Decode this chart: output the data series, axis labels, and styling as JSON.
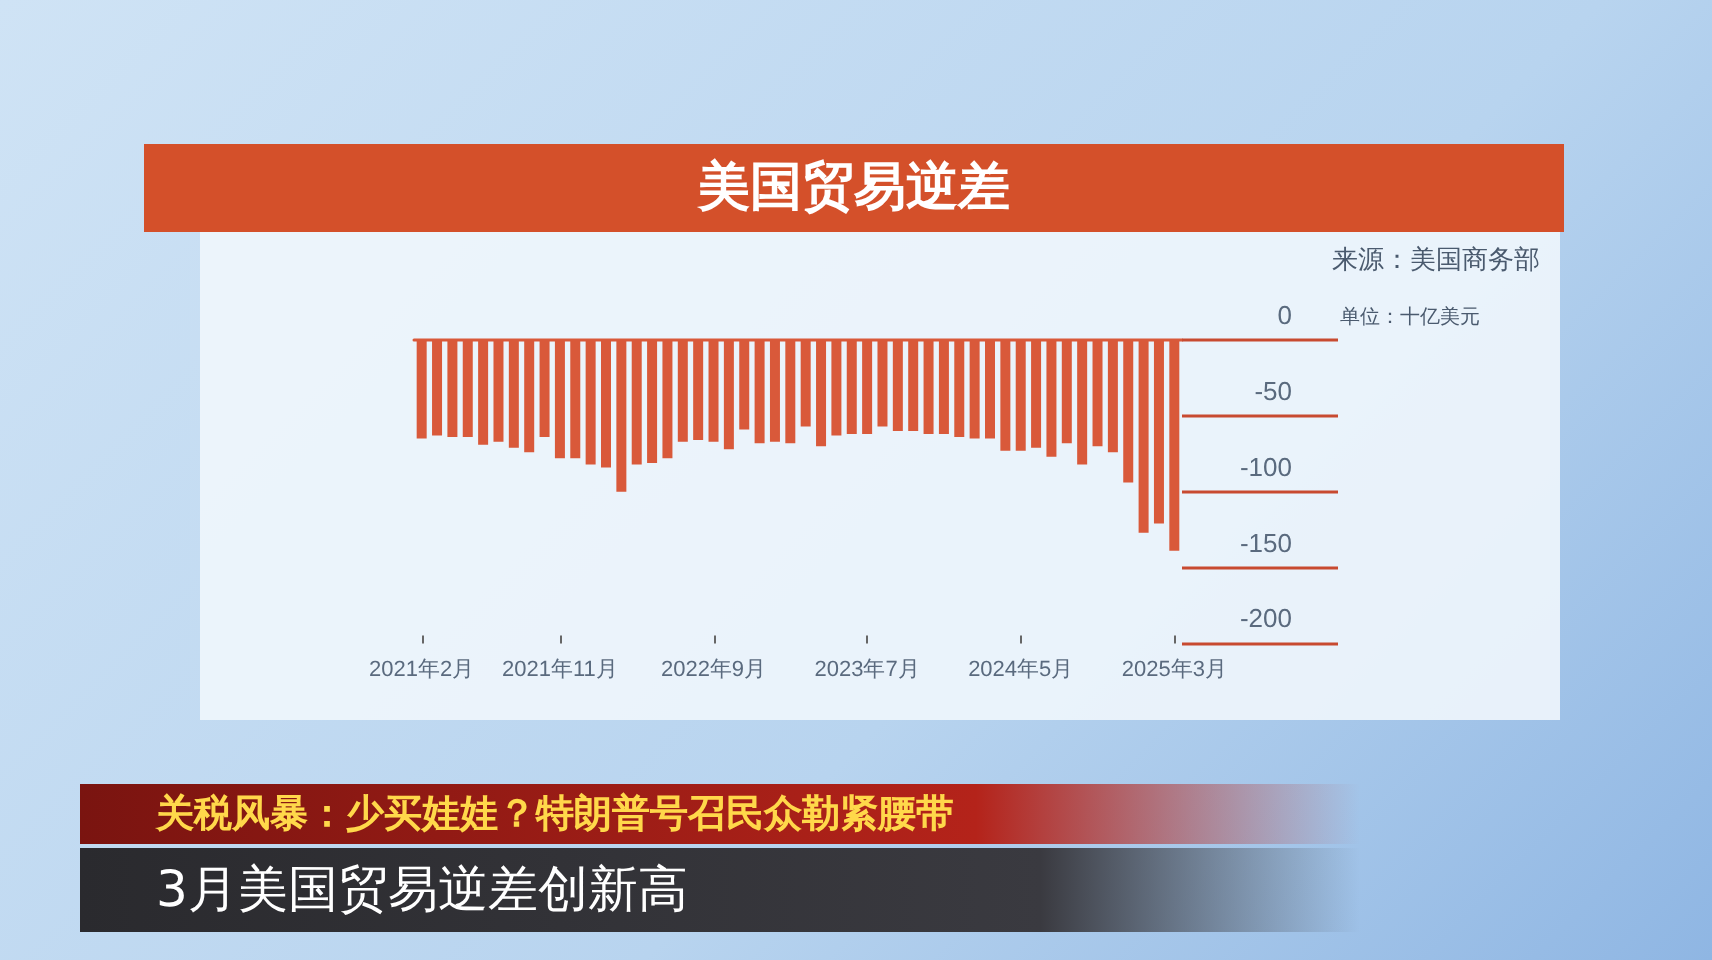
{
  "chart_data": {
    "type": "bar",
    "title": "美国贸易逆差",
    "annotations": [
      "来源：美国商务部",
      "单位：十亿美元",
      "关税风暴：少买娃娃？特朗普号召民众勒紧腰带",
      "3月美国贸易逆差创新高"
    ],
    "categories": [
      "2021年2月",
      null,
      null,
      null,
      null,
      null,
      null,
      null,
      null,
      "2021年11月",
      null,
      null,
      null,
      null,
      null,
      null,
      null,
      null,
      null,
      "2022年9月",
      null,
      null,
      null,
      null,
      null,
      null,
      null,
      null,
      null,
      "2023年7月",
      null,
      null,
      null,
      null,
      null,
      null,
      null,
      null,
      null,
      "2024年5月",
      null,
      null,
      null,
      null,
      null,
      null,
      null,
      null,
      null,
      "2025年3月"
    ],
    "values": [
      -65,
      -63,
      -64,
      -64,
      -69,
      -67,
      -71,
      -74,
      -64,
      -78,
      -78,
      -82,
      -84,
      -100,
      -82,
      -81,
      -78,
      -67,
      -66,
      -67,
      -72,
      -59,
      -68,
      -67,
      -68,
      -57,
      -70,
      -63,
      -62,
      -62,
      -57,
      -60,
      -60,
      -62,
      -62,
      -64,
      -65,
      -65,
      -73,
      -73,
      -71,
      -77,
      -68,
      -82,
      -70,
      -74,
      -94,
      -127,
      -121,
      -139
    ],
    "color": "#d9593a",
    "ylim": [
      -200,
      0
    ],
    "yticks": [
      0,
      -50,
      -100,
      -150,
      -200
    ],
    "grid": false
  }
}
